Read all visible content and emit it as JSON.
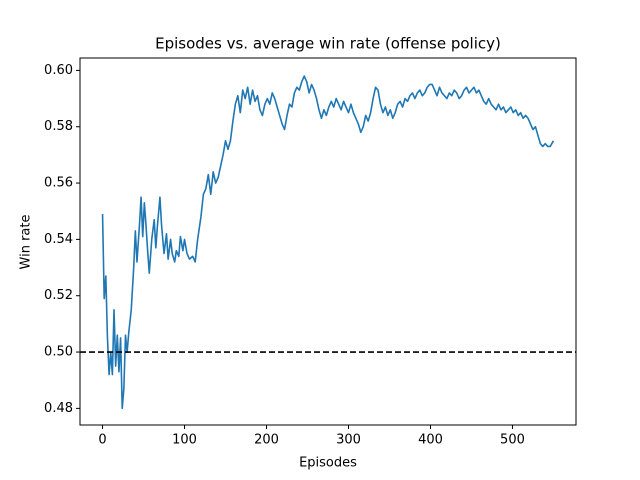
{
  "chart_data": {
    "type": "line",
    "title": "Episodes vs. average win rate (offense policy)",
    "x_label": "Episodes",
    "y_label": "Win rate",
    "x": [
      0,
      2,
      4,
      6,
      8,
      10,
      12,
      14,
      16,
      18,
      20,
      22,
      24,
      26,
      28,
      30,
      32,
      35,
      38,
      40,
      42,
      45,
      47,
      49,
      51,
      53,
      55,
      57,
      60,
      63,
      65,
      67,
      70,
      72,
      75,
      78,
      80,
      83,
      85,
      88,
      90,
      93,
      95,
      98,
      100,
      103,
      106,
      110,
      113,
      116,
      120,
      123,
      126,
      129,
      132,
      135,
      138,
      141,
      144,
      147,
      150,
      153,
      156,
      159,
      162,
      165,
      168,
      171,
      174,
      177,
      180,
      183,
      186,
      189,
      192,
      195,
      198,
      201,
      204,
      207,
      210,
      213,
      216,
      219,
      222,
      225,
      228,
      231,
      234,
      237,
      240,
      243,
      246,
      249,
      252,
      255,
      258,
      261,
      264,
      267,
      270,
      273,
      276,
      279,
      282,
      285,
      288,
      291,
      294,
      297,
      300,
      303,
      306,
      309,
      312,
      315,
      318,
      321,
      324,
      327,
      330,
      333,
      336,
      339,
      342,
      345,
      348,
      351,
      354,
      357,
      360,
      363,
      366,
      369,
      372,
      375,
      378,
      381,
      384,
      387,
      390,
      393,
      396,
      399,
      402,
      405,
      408,
      411,
      414,
      417,
      420,
      423,
      426,
      429,
      432,
      435,
      438,
      441,
      444,
      447,
      450,
      453,
      456,
      459,
      462,
      465,
      468,
      471,
      474,
      477,
      480,
      483,
      486,
      489,
      492,
      495,
      498,
      501,
      504,
      507,
      510,
      513,
      516,
      519,
      522,
      525,
      528,
      531,
      534,
      537,
      540,
      543,
      546,
      550
    ],
    "series": [
      {
        "color": "#1f77b4",
        "values": [
          0.549,
          0.519,
          0.527,
          0.505,
          0.492,
          0.5,
          0.492,
          0.515,
          0.495,
          0.506,
          0.493,
          0.505,
          0.48,
          0.487,
          0.506,
          0.5,
          0.507,
          0.515,
          0.53,
          0.543,
          0.532,
          0.545,
          0.555,
          0.541,
          0.553,
          0.545,
          0.536,
          0.528,
          0.54,
          0.547,
          0.537,
          0.545,
          0.555,
          0.545,
          0.535,
          0.542,
          0.533,
          0.54,
          0.535,
          0.532,
          0.536,
          0.534,
          0.541,
          0.536,
          0.54,
          0.535,
          0.533,
          0.534,
          0.532,
          0.54,
          0.548,
          0.556,
          0.558,
          0.563,
          0.556,
          0.564,
          0.56,
          0.562,
          0.566,
          0.57,
          0.575,
          0.572,
          0.575,
          0.582,
          0.588,
          0.591,
          0.585,
          0.593,
          0.59,
          0.594,
          0.588,
          0.593,
          0.589,
          0.591,
          0.586,
          0.584,
          0.588,
          0.59,
          0.588,
          0.592,
          0.59,
          0.587,
          0.584,
          0.581,
          0.579,
          0.584,
          0.588,
          0.587,
          0.592,
          0.594,
          0.593,
          0.596,
          0.598,
          0.596,
          0.592,
          0.595,
          0.593,
          0.59,
          0.586,
          0.583,
          0.586,
          0.584,
          0.587,
          0.589,
          0.587,
          0.59,
          0.588,
          0.586,
          0.589,
          0.587,
          0.585,
          0.588,
          0.585,
          0.583,
          0.581,
          0.578,
          0.58,
          0.584,
          0.582,
          0.585,
          0.59,
          0.594,
          0.593,
          0.588,
          0.585,
          0.587,
          0.584,
          0.586,
          0.583,
          0.585,
          0.588,
          0.589,
          0.587,
          0.59,
          0.589,
          0.591,
          0.592,
          0.59,
          0.592,
          0.593,
          0.591,
          0.592,
          0.594,
          0.595,
          0.595,
          0.593,
          0.591,
          0.594,
          0.592,
          0.591,
          0.59,
          0.592,
          0.591,
          0.593,
          0.592,
          0.59,
          0.591,
          0.593,
          0.594,
          0.592,
          0.593,
          0.594,
          0.592,
          0.593,
          0.591,
          0.589,
          0.588,
          0.59,
          0.588,
          0.587,
          0.586,
          0.588,
          0.586,
          0.587,
          0.585,
          0.586,
          0.587,
          0.585,
          0.586,
          0.584,
          0.585,
          0.583,
          0.584,
          0.583,
          0.581,
          0.579,
          0.58,
          0.577,
          0.574,
          0.573,
          0.574,
          0.573,
          0.573,
          0.575
        ]
      }
    ],
    "hline": {
      "value": 0.5,
      "color": "#000000",
      "style": "dashed"
    },
    "xlim": [
      -27.5,
      577.5
    ],
    "xticks": [
      0,
      100,
      200,
      300,
      400,
      500
    ],
    "ylim": [
      0.4741,
      0.6044
    ],
    "yticks": [
      0.48,
      {
        "value": 0.5,
        "label": "0.50"
      },
      0.52,
      0.54,
      0.56,
      0.58,
      {
        "value": 0.6,
        "label": "0.60"
      }
    ],
    "grid": false
  }
}
